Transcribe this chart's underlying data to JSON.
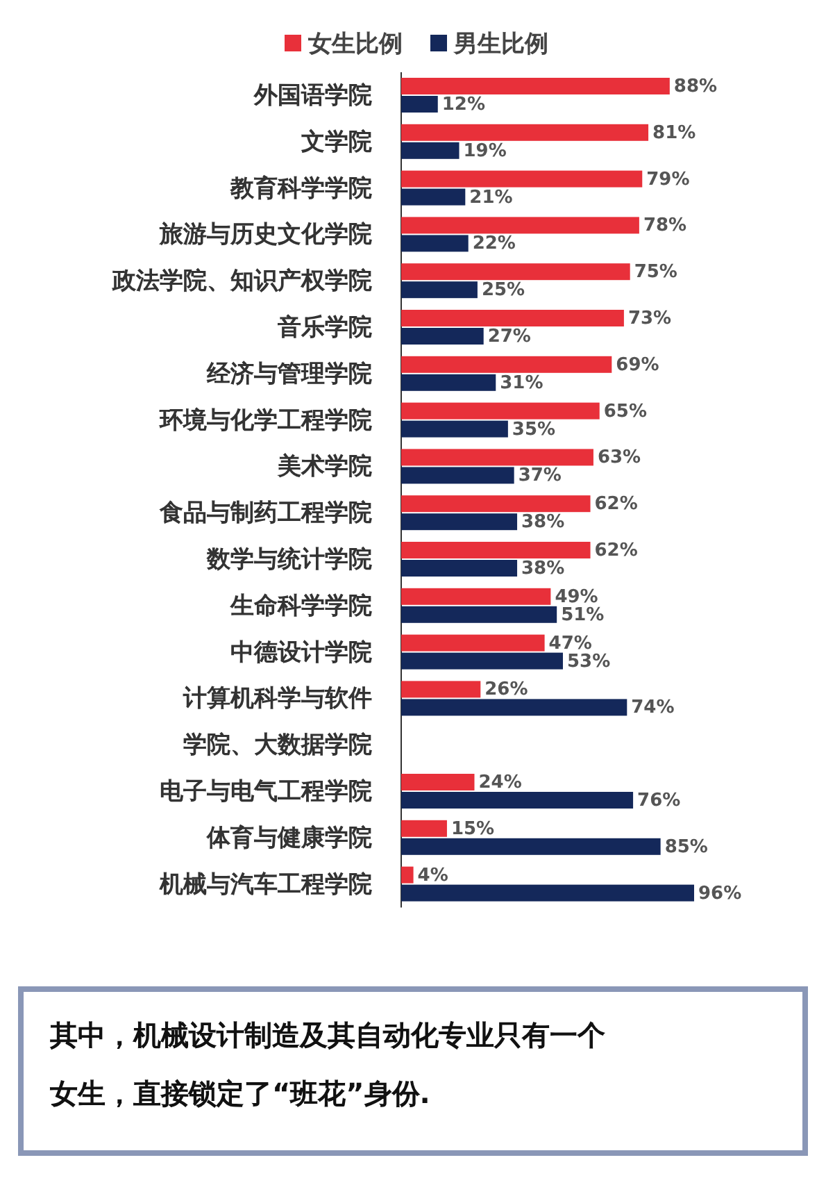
{
  "chart_data": {
    "type": "bar",
    "orientation": "horizontal",
    "legend": "top",
    "data_labels": true,
    "categories": [
      "外国语学院",
      "文学院",
      "教育科学学院",
      "旅游与历史文化学院",
      "政法学院、知识产权学院",
      "音乐学院",
      "经济与管理学院",
      "环境与化学工程学院",
      "美术学院",
      "食品与制药工程学院",
      "数学与统计学院",
      "生命科学学院",
      "中德设计学院",
      "计算机科学与软件学院、大数据学院",
      "电子与电气工程学院",
      "体育与健康学院",
      "机械与汽车工程学院"
    ],
    "series": [
      {
        "name": "女生比例",
        "color": "#e8303a",
        "values": [
          88,
          81,
          79,
          78,
          75,
          73,
          69,
          65,
          63,
          62,
          62,
          49,
          47,
          26,
          24,
          15,
          4
        ],
        "value_labels": [
          "88%",
          "81%",
          "79%",
          "78%",
          "75%",
          "73%",
          "69%",
          "65%",
          "63%",
          "62%",
          "62%",
          "49%",
          "47%",
          "26%",
          "24%",
          "15%",
          "4%"
        ]
      },
      {
        "name": "男生比例",
        "color": "#14285a",
        "values": [
          12,
          19,
          21,
          22,
          25,
          27,
          31,
          35,
          37,
          38,
          38,
          51,
          53,
          74,
          76,
          85,
          96
        ],
        "value_labels": [
          "12%",
          "19%",
          "21%",
          "22%",
          "25%",
          "27%",
          "31%",
          "35%",
          "37%",
          "38%",
          "38%",
          "51%",
          "53%",
          "74%",
          "76%",
          "85%",
          "96%"
        ]
      }
    ],
    "annotations": [
      "其中，机械设计制造及其自动化专业只有一个女生，直接锁定了“班花”身份."
    ]
  }
}
